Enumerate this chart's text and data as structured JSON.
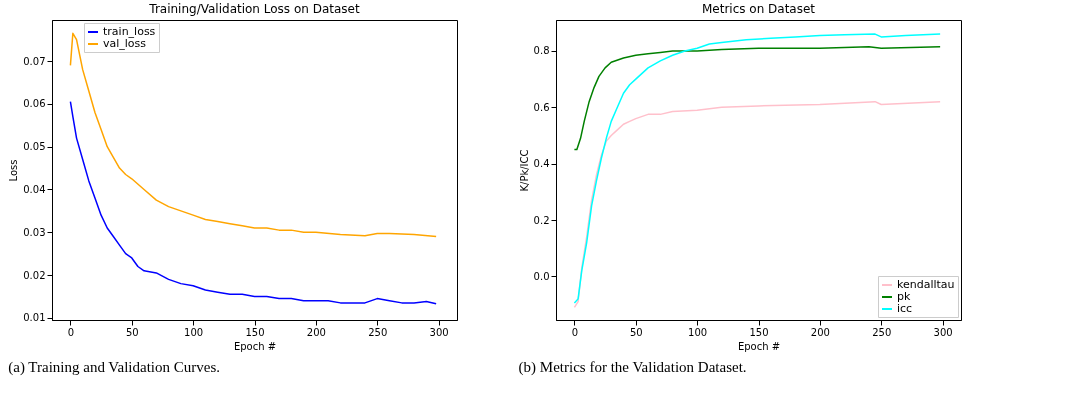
{
  "chart_data": [
    {
      "type": "line",
      "title": "Training/Validation Loss on Dataset",
      "xlabel": "Epoch #",
      "ylabel": "Loss",
      "xlim": [
        -15,
        315
      ],
      "ylim": [
        0.0095,
        0.0796
      ],
      "xticks": [
        0,
        50,
        100,
        150,
        200,
        250,
        300
      ],
      "yticks": [
        0.01,
        0.02,
        0.03,
        0.04,
        0.05,
        0.06,
        0.07
      ],
      "grid": false,
      "legend": "top left",
      "annotations": [
        "(a) Training and Validation Curves."
      ],
      "series": [
        {
          "name": "train_loss",
          "color": "#0000ff",
          "x": [
            0,
            2,
            5,
            10,
            15,
            20,
            25,
            30,
            35,
            40,
            45,
            50,
            55,
            60,
            70,
            80,
            90,
            100,
            110,
            120,
            130,
            140,
            150,
            160,
            170,
            180,
            190,
            200,
            210,
            220,
            230,
            240,
            250,
            260,
            270,
            280,
            290,
            298
          ],
          "values": [
            0.0605,
            0.057,
            0.052,
            0.047,
            0.042,
            0.038,
            0.034,
            0.031,
            0.029,
            0.027,
            0.025,
            0.024,
            0.022,
            0.021,
            0.0205,
            0.019,
            0.018,
            0.0175,
            0.0165,
            0.016,
            0.0155,
            0.0155,
            0.015,
            0.015,
            0.0145,
            0.0145,
            0.014,
            0.014,
            0.014,
            0.0135,
            0.0135,
            0.0135,
            0.0145,
            0.014,
            0.0135,
            0.0135,
            0.0138,
            0.0133
          ]
        },
        {
          "name": "val_loss",
          "color": "#ffa500",
          "x": [
            0,
            2,
            5,
            10,
            15,
            20,
            25,
            30,
            35,
            40,
            45,
            50,
            60,
            70,
            80,
            90,
            100,
            110,
            120,
            130,
            140,
            150,
            160,
            170,
            180,
            190,
            200,
            220,
            240,
            250,
            260,
            280,
            298
          ],
          "values": [
            0.069,
            0.0765,
            0.075,
            0.068,
            0.063,
            0.058,
            0.054,
            0.05,
            0.0475,
            0.045,
            0.0435,
            0.0425,
            0.04,
            0.0375,
            0.036,
            0.035,
            0.034,
            0.033,
            0.0325,
            0.032,
            0.0315,
            0.031,
            0.031,
            0.0305,
            0.0305,
            0.03,
            0.03,
            0.0295,
            0.0292,
            0.0297,
            0.0297,
            0.0295,
            0.029
          ]
        }
      ]
    },
    {
      "type": "line",
      "title": "Metrics on Dataset",
      "xlabel": "Epoch #",
      "ylabel": "K/Pk/ICC",
      "xlim": [
        -15,
        315
      ],
      "ylim": [
        -0.155,
        0.91
      ],
      "xticks": [
        0,
        50,
        100,
        150,
        200,
        250,
        300
      ],
      "yticks": [
        {
          "value": 0,
          "label": "0.0"
        },
        0.2,
        0.4,
        0.6,
        0.8
      ],
      "grid": false,
      "legend": "bottom right",
      "annotations": [
        "(b) Metrics for the Validation Dataset."
      ],
      "series": [
        {
          "name": "kendalltau",
          "color": "#ffc0cb",
          "x": [
            0,
            3,
            6,
            10,
            14,
            18,
            22,
            26,
            30,
            35,
            40,
            45,
            50,
            60,
            70,
            80,
            100,
            120,
            150,
            200,
            245,
            250,
            298
          ],
          "values": [
            -0.11,
            -0.09,
            0.03,
            0.14,
            0.27,
            0.36,
            0.43,
            0.48,
            0.5,
            0.52,
            0.54,
            0.55,
            0.56,
            0.575,
            0.575,
            0.585,
            0.59,
            0.6,
            0.605,
            0.61,
            0.62,
            0.61,
            0.62
          ]
        },
        {
          "name": "pk",
          "color": "#008000",
          "x": [
            0,
            2,
            5,
            8,
            12,
            16,
            20,
            25,
            30,
            40,
            50,
            60,
            70,
            80,
            100,
            120,
            150,
            200,
            240,
            250,
            298
          ],
          "values": [
            0.45,
            0.45,
            0.49,
            0.55,
            0.62,
            0.67,
            0.71,
            0.74,
            0.76,
            0.775,
            0.785,
            0.79,
            0.795,
            0.8,
            0.8,
            0.805,
            0.81,
            0.81,
            0.815,
            0.81,
            0.815
          ]
        },
        {
          "name": "icc",
          "color": "#00ffff",
          "x": [
            0,
            3,
            6,
            10,
            14,
            18,
            22,
            26,
            30,
            35,
            40,
            45,
            50,
            60,
            70,
            80,
            90,
            100,
            110,
            120,
            140,
            160,
            180,
            200,
            220,
            245,
            250,
            270,
            298
          ],
          "values": [
            -0.095,
            -0.08,
            0.02,
            0.12,
            0.25,
            0.34,
            0.42,
            0.49,
            0.55,
            0.6,
            0.65,
            0.68,
            0.7,
            0.74,
            0.765,
            0.785,
            0.8,
            0.81,
            0.825,
            0.83,
            0.84,
            0.845,
            0.85,
            0.855,
            0.858,
            0.86,
            0.85,
            0.855,
            0.86
          ]
        }
      ]
    }
  ]
}
